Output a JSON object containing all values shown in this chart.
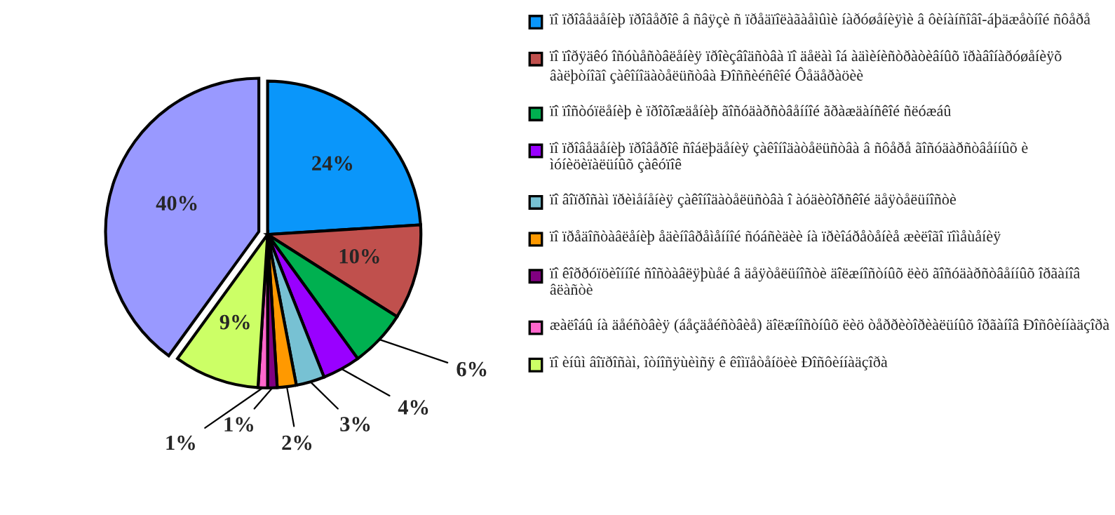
{
  "chart_data": {
    "type": "pie",
    "categories": [
      "ïî ïðîâåäåíèþ ïðîâåðîê â ñâÿçè ñ ïðåäïîëàãàåìûìè íàðóøåíèÿìè â ôèíàíñîâî-áþäæåòíîé ñôåðå",
      "ïî ïîðÿäêó îñóùåñòâëåíèÿ ïðîèçâîäñòâà ïî äåëàì îá àäìèíèñòðàòèâíûõ ïðàâîíàðóøåíèÿõ âàëþòíîãî çàêîíîäàòåëüñòâà Ðîññèéñêîé Ôåäåðàöèè",
      "ïî ïîñòóïëåíèþ è ïðîõîæäåíèþ ãîñóäàðñòâåííîé ãðàæäàíñêîé ñëóæáû",
      "ïî ïðîâåäåíèþ ïðîâåðîê ñîáëþäåíèÿ çàêîíîäàòåëüñòâà â ñôåðå ãîñóäàðñòâåííûõ è ìóíèöèïàëüíûõ çàêóïîê",
      "ïî âîïðîñàì ïðèìåíåíèÿ çàêîíîäàòåëüñòâà î àóäèòîðñêîé äåÿòåëüíîñòè",
      "ïî ïðåäîñòàâëåíèþ åäèíîâðåìåííîé ñóáñèäèè íà ïðèîáðåòåíèå æèëîãî ïîìåùåíèÿ",
      "ïî êîððóïöèîííîé ñîñòàâëÿþùåé â äåÿòåëüíîñòè äîëæíîñòíûõ ëèö ãîñóäàðñòâåííûõ îðãàíîâ âëàñòè",
      "æàëîáû íà äåéñòâèÿ (áåçäåéñòâèå) äîëæíîñòíûõ ëèö òåððèòîðèàëüíûõ îðãàíîâ Ðîñôèííàäçîðà",
      "ïî èíûì âîïðîñàì, îòíîñÿùèìñÿ ê êîìïåòåíöèè Ðîñôèííàäçîðà",
      null
    ],
    "values": [
      24,
      10,
      6,
      4,
      3,
      2,
      1,
      1,
      9,
      40
    ],
    "value_labels": [
      "24%",
      "10%",
      "6%",
      "4%",
      "3%",
      "2%",
      "1%",
      "1%",
      "9%",
      "40%"
    ],
    "colors": [
      "#0a96fa",
      "#c0504d",
      "#00b050",
      "#9900ff",
      "#77c1d3",
      "#ff9900",
      "#800080",
      "#ff66cc",
      "#ccff66",
      "#9999ff"
    ],
    "legend": "right"
  }
}
